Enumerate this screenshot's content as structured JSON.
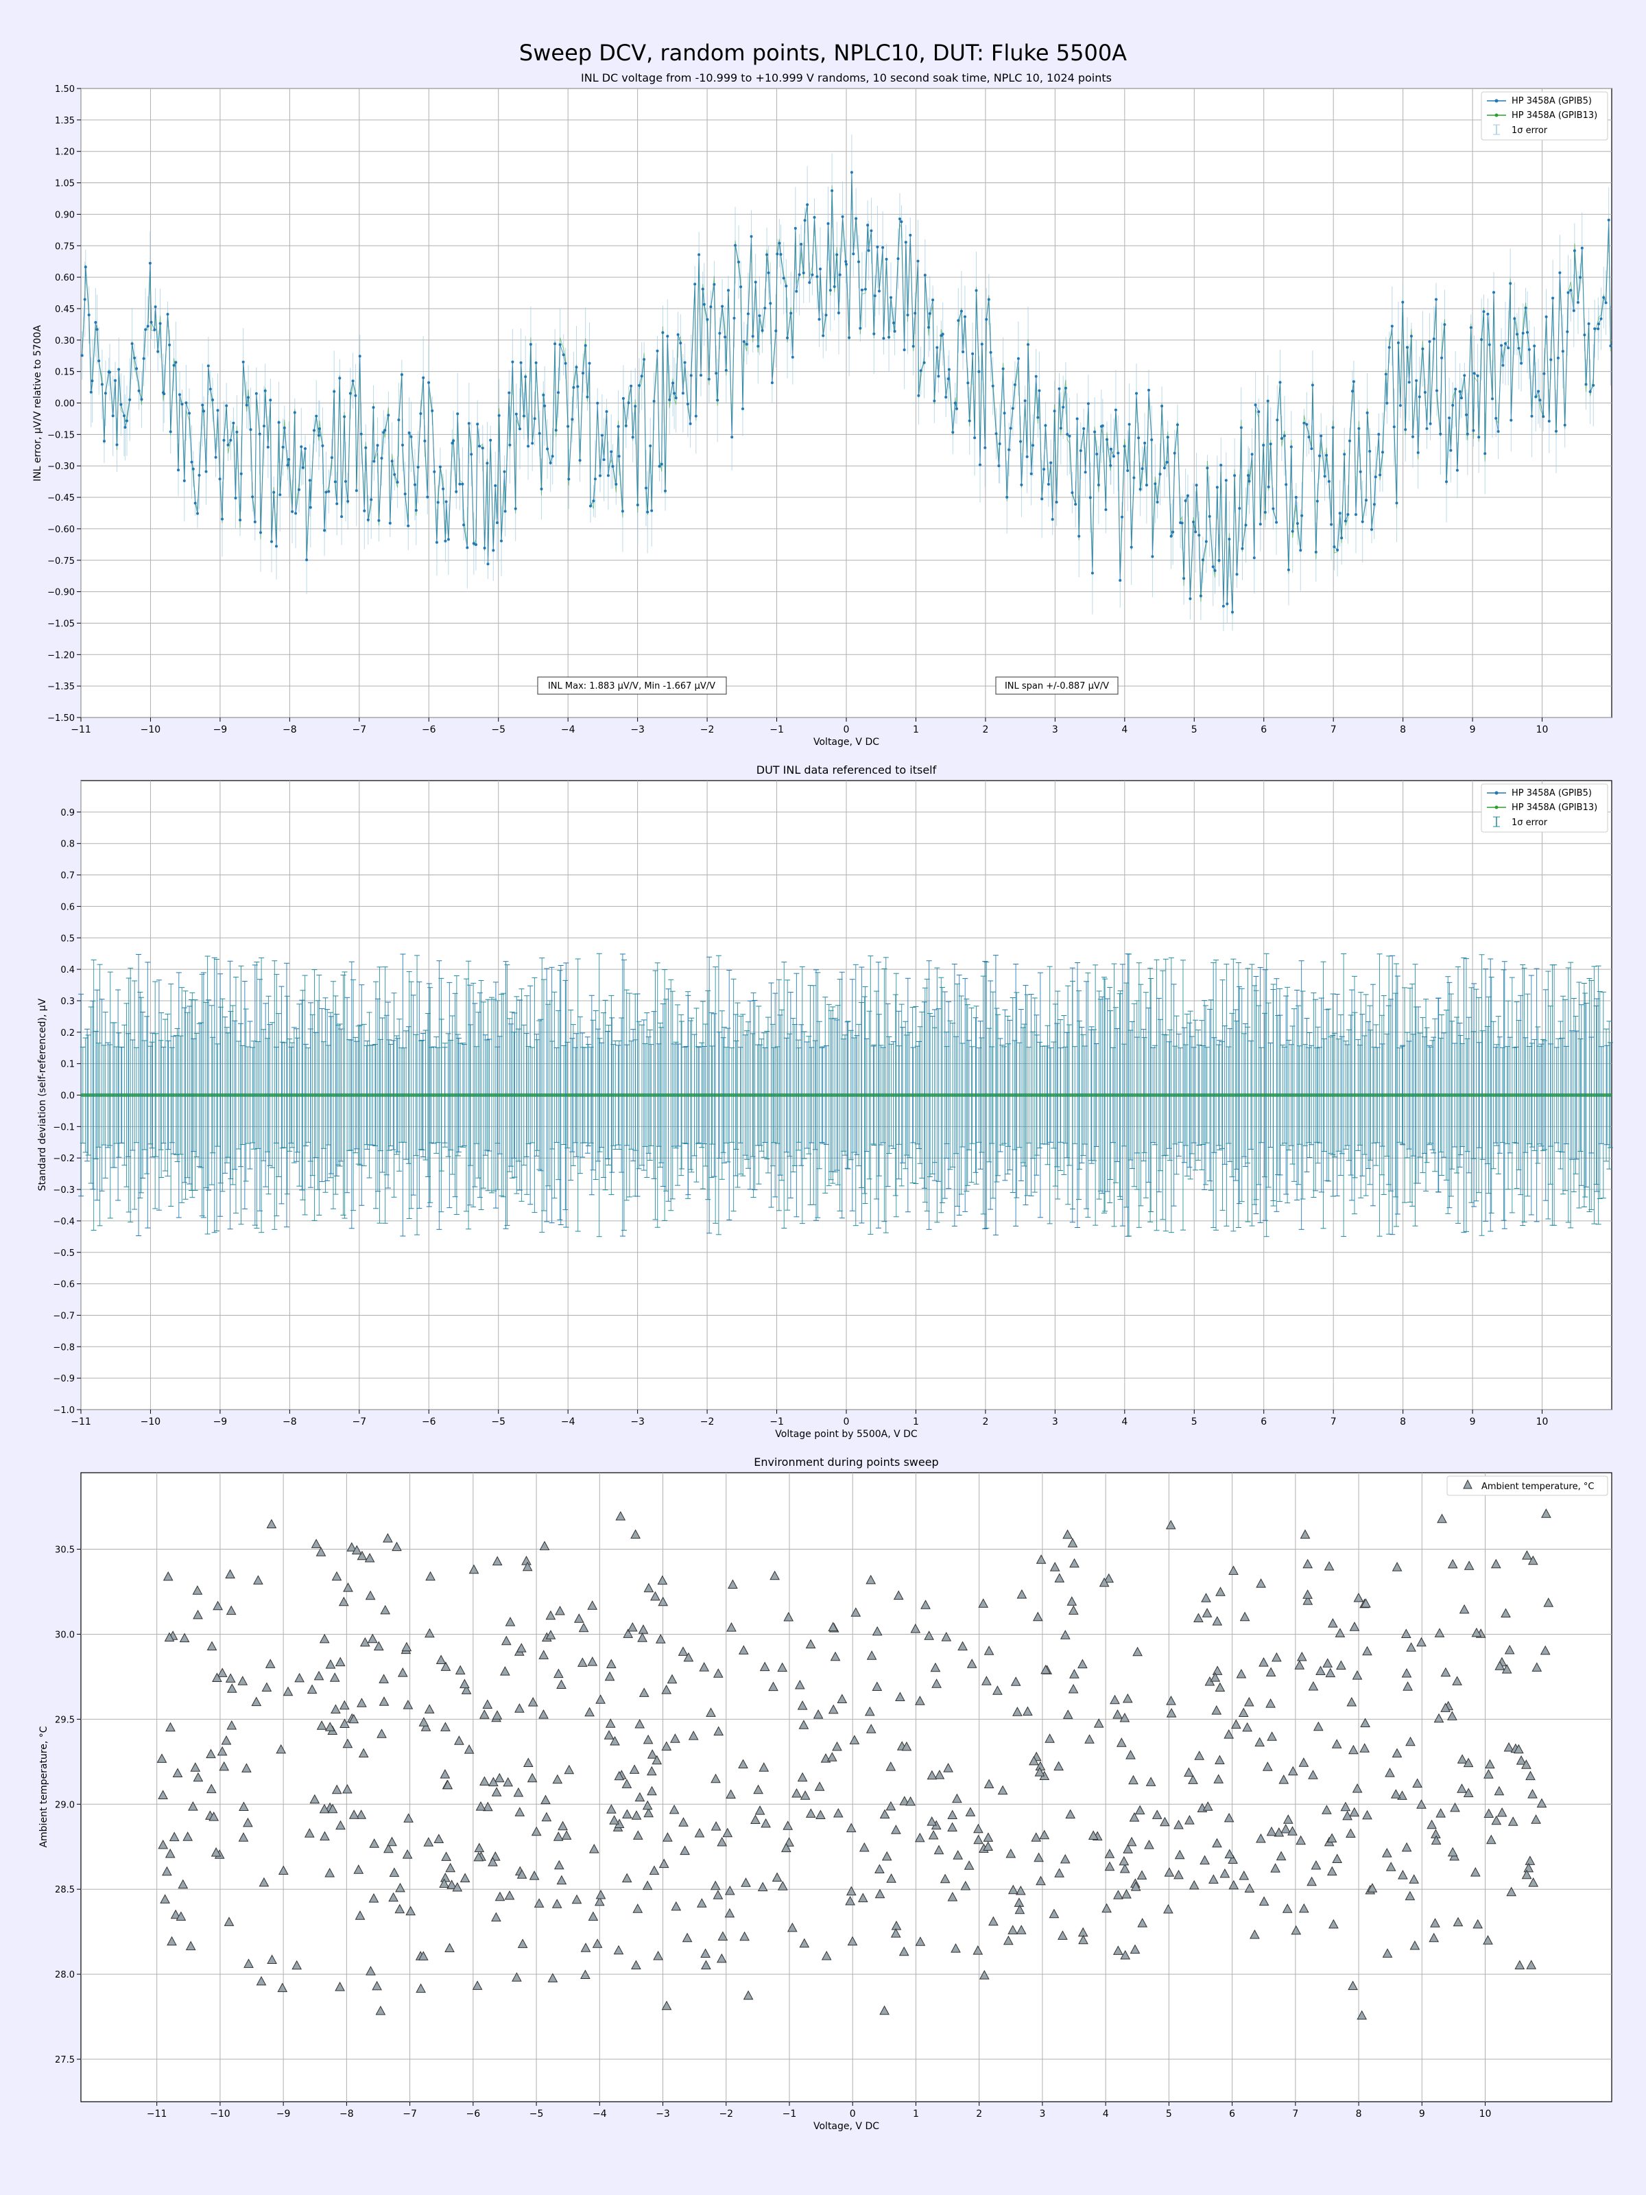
{
  "suptitle": "Sweep DCV, random points, NPLC10, DUT: Fluke 5500A",
  "colors": {
    "page_bg": "#eeeefe",
    "series_a": "#1f77b4",
    "series_b": "#2ca02c",
    "errorbar": "#9ecae1",
    "errorbar_self": "#1f8a9b",
    "marker_fill": "#9aa6ad",
    "marker_edge": "#333333",
    "grid": "#b0b0b0"
  },
  "chart_data": [
    {
      "type": "line",
      "title": "INL DC voltage from -10.999 to +10.999 V randoms, 10 second soak time, NPLC 10, 1024 points",
      "xlabel": "Voltage, V DC",
      "ylabel": "INL error, μV/V relative to 5700A",
      "xlim": [
        -11,
        11
      ],
      "ylim": [
        -1.5,
        1.5
      ],
      "xticks": [
        -11,
        -10,
        -9,
        -8,
        -7,
        -6,
        -5,
        -4,
        -3,
        -2,
        -1,
        0,
        1,
        2,
        3,
        4,
        5,
        6,
        7,
        8,
        9,
        10
      ],
      "yticks": [
        -1.5,
        -1.35,
        -1.2,
        -1.05,
        -0.9,
        -0.75,
        -0.6,
        -0.45,
        -0.3,
        -0.15,
        0.0,
        0.15,
        0.3,
        0.45,
        0.6,
        0.75,
        0.9,
        1.05,
        1.2,
        1.35,
        1.5
      ],
      "grid": true,
      "legend_position": "top-right",
      "legend": [
        "HP 3458A (GPIB5)",
        "HP 3458A (GPIB13)",
        "1σ error"
      ],
      "annotations": [
        "INL Max: 1.883 μV/V, Min -1.667 μV/V",
        "INL span +/-0.887 μV/V"
      ],
      "trend": {
        "x": [
          -11,
          -10.5,
          -10,
          -9.5,
          -9,
          -8.5,
          -8,
          -7.5,
          -7,
          -6.5,
          -6,
          -5.5,
          -5,
          -4.5,
          -4,
          -3.5,
          -3,
          -2.5,
          -2,
          -1.5,
          -1,
          -0.5,
          0,
          0.5,
          1,
          1.5,
          2,
          2.5,
          3,
          3.5,
          4,
          4.5,
          5,
          5.5,
          6,
          6.5,
          7,
          7.5,
          8,
          8.5,
          9,
          9.5,
          10,
          10.5,
          11
        ],
        "y": [
          0.35,
          0.05,
          0.3,
          -0.15,
          -0.1,
          -0.25,
          -0.35,
          -0.3,
          -0.05,
          -0.35,
          -0.25,
          -0.4,
          -0.45,
          -0.05,
          0.05,
          -0.2,
          -0.1,
          0.05,
          0.35,
          0.3,
          0.55,
          0.6,
          0.75,
          0.45,
          0.5,
          0.2,
          0.15,
          -0.1,
          -0.25,
          -0.35,
          -0.45,
          -0.25,
          -0.55,
          -0.6,
          -0.3,
          -0.35,
          -0.35,
          -0.3,
          0.05,
          0.1,
          0.05,
          0.2,
          0.3,
          0.3,
          0.55
        ]
      },
      "series": [
        {
          "name": "HP 3458A (GPIB5)"
        },
        {
          "name": "HP 3458A (GPIB13)"
        }
      ]
    },
    {
      "type": "scatter",
      "title": "DUT INL data referenced to itself",
      "xlabel": "Voltage point by 5500A, V DC",
      "ylabel": "Standard deviation (self-referenced), μV",
      "xlim": [
        -11,
        11
      ],
      "ylim": [
        -1.0,
        1.0
      ],
      "xticks": [
        -11,
        -10,
        -9,
        -8,
        -7,
        -6,
        -5,
        -4,
        -3,
        -2,
        -1,
        0,
        1,
        2,
        3,
        4,
        5,
        6,
        7,
        8,
        9,
        10
      ],
      "yticks": [
        -1.0,
        -0.9,
        -0.8,
        -0.7,
        -0.6,
        -0.5,
        -0.4,
        -0.3,
        -0.2,
        -0.1,
        0.0,
        0.1,
        0.2,
        0.3,
        0.4,
        0.5,
        0.6,
        0.7,
        0.8,
        0.9
      ],
      "grid": true,
      "legend_position": "top-right",
      "legend": [
        "HP 3458A (GPIB5)",
        "HP 3458A (GPIB13)",
        "1σ error"
      ],
      "point_value": 0.0,
      "error_range": [
        0.15,
        0.45
      ]
    },
    {
      "type": "scatter",
      "title": "Environment during points sweep",
      "xlabel": "Voltage, V DC",
      "ylabel": "Ambient temperature, °C",
      "xlim": [
        -12.2,
        12.0
      ],
      "ylim": [
        27.25,
        30.95
      ],
      "xticks": [
        -11,
        -10,
        -9,
        -8,
        -7,
        -6,
        -5,
        -4,
        -3,
        -2,
        -1,
        0,
        1,
        2,
        3,
        4,
        5,
        6,
        7,
        8,
        9,
        10
      ],
      "yticks": [
        27.5,
        28.0,
        28.5,
        29.0,
        29.5,
        30.0,
        30.5
      ],
      "grid": true,
      "legend_position": "top-right",
      "legend": [
        "Ambient temperature, °C"
      ],
      "y_range": [
        27.45,
        30.8
      ]
    }
  ]
}
